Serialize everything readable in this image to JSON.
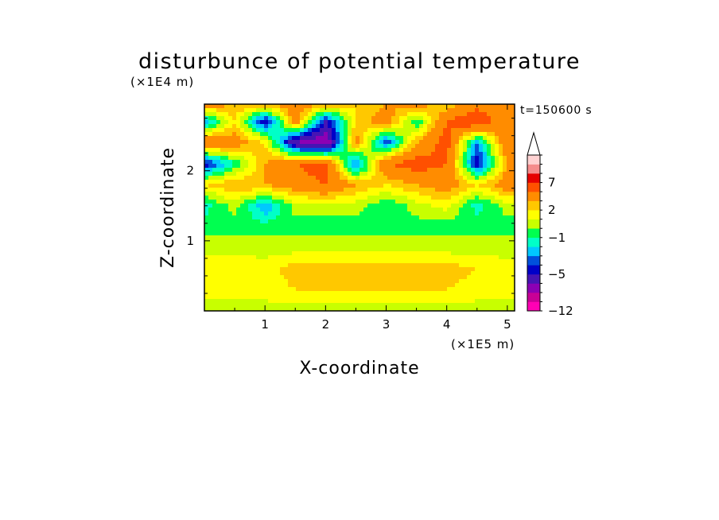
{
  "chart_data": {
    "type": "heatmap",
    "title": "disturbunce of potential temperature",
    "xlabel": "X-coordinate",
    "ylabel": "Z-coordinate",
    "x_unit": "(×1E5 m)",
    "y_unit": "(×1E4 m)",
    "time_label": "t=150600 s",
    "xlim": [
      0,
      5.12
    ],
    "ylim": [
      0,
      2.95
    ],
    "x_ticks": [
      1,
      2,
      3,
      4,
      5
    ],
    "y_ticks": [
      1,
      2
    ],
    "colorbar": {
      "levels": [
        -12,
        -11,
        -9,
        -7,
        -5,
        -4,
        -3,
        -2,
        -1,
        0,
        1,
        2,
        3,
        5,
        7,
        9,
        11
      ],
      "colors": [
        "#ff00b4",
        "#c80096",
        "#8c00b4",
        "#4614b4",
        "#0000c8",
        "#0050dc",
        "#00c8ff",
        "#00ffc8",
        "#00ff50",
        "#c8ff00",
        "#ffff00",
        "#ffc800",
        "#ff8c00",
        "#ff5000",
        "#e60000",
        "#f58c8c",
        "#ffd2d2"
      ],
      "tick_labels": [
        {
          "value": -12,
          "label": "−12"
        },
        {
          "value": -5,
          "label": "−5"
        },
        {
          "value": -1,
          "label": "−1"
        },
        {
          "value": 2,
          "label": "2"
        },
        {
          "value": 7,
          "label": "7"
        }
      ],
      "extend": "max"
    },
    "field": {
      "x": [
        0,
        0.5,
        1,
        1.5,
        2,
        2.5,
        3,
        3.5,
        4,
        4.5,
        5
      ],
      "z": [
        0,
        0.3,
        0.6,
        0.9,
        1.2,
        1.5,
        1.8,
        2.1,
        2.4,
        2.7,
        2.95
      ],
      "values": [
        [
          0.5,
          0.5,
          0.5,
          0.5,
          0.5,
          0.5,
          0.5,
          0.5,
          0.5,
          0.5,
          0.5
        ],
        [
          1.5,
          1.5,
          1.5,
          2,
          2,
          2,
          2,
          2,
          2,
          1.5,
          1.5
        ],
        [
          2,
          2,
          1.5,
          2.5,
          2.5,
          2.5,
          2.5,
          2.5,
          2.5,
          2,
          1.5
        ],
        [
          0.5,
          0.5,
          0.5,
          0.5,
          0.5,
          0.5,
          0.5,
          0.5,
          0.5,
          0.5,
          0.5
        ],
        [
          -0.5,
          -0.5,
          -0.5,
          -0.5,
          -0.5,
          -0.5,
          -0.5,
          -0.5,
          -0.5,
          -0.5,
          -0.5
        ],
        [
          -1.5,
          0.5,
          -3,
          0.5,
          0.5,
          0.5,
          -1,
          0.5,
          1.5,
          -1.5,
          0.5
        ],
        [
          2,
          3,
          3,
          4,
          5,
          3,
          2,
          3,
          4,
          2,
          4
        ],
        [
          -5,
          -1,
          3,
          5,
          6,
          -4,
          5,
          6,
          5,
          -5,
          3
        ],
        [
          5,
          4,
          2,
          -7,
          -9,
          4,
          -4,
          3,
          6,
          -3,
          5
        ],
        [
          -3,
          2,
          -5,
          4,
          -5,
          2,
          4,
          -1,
          5,
          7,
          3
        ],
        [
          4,
          3,
          3,
          4,
          3,
          2,
          3,
          4,
          2,
          4,
          3
        ]
      ]
    }
  }
}
